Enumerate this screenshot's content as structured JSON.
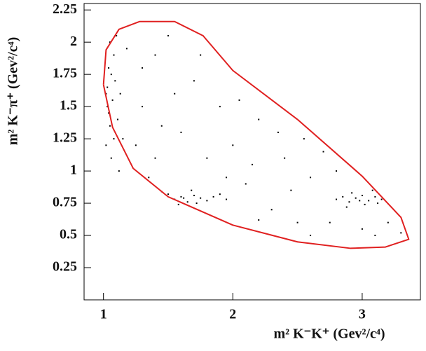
{
  "chart_data": {
    "type": "scatter",
    "xlabel": "m² K⁻K⁺ (Gev²/c⁴)",
    "ylabel": "m² K⁻π⁺ (Gev²/c⁴)",
    "xlim": [
      0.85,
      3.45
    ],
    "ylim": [
      0,
      2.3
    ],
    "xticks": [
      1,
      2,
      3
    ],
    "yticks": [
      0.25,
      0.5,
      0.75,
      1,
      1.25,
      1.5,
      1.75,
      2,
      2.25
    ],
    "color": "#000000",
    "x": [
      1.02,
      1.03,
      1.04,
      1.05,
      1.03,
      1.06,
      1.08,
      1.05,
      1.1,
      1.07,
      1.12,
      1.04,
      1.09,
      1.15,
      1.13,
      1.06,
      1.11,
      1.02,
      1.18,
      1.08,
      1.5,
      1.55,
      1.6,
      1.65,
      1.7,
      1.75,
      1.8,
      1.58,
      1.68,
      1.85,
      1.62,
      1.72,
      1.9,
      1.45,
      1.95,
      2.8,
      2.85,
      2.9,
      2.95,
      3.0,
      3.05,
      3.1,
      3.15,
      2.92,
      3.02,
      3.08,
      2.88,
      3.12,
      2.98,
      1.3,
      1.4,
      1.5,
      1.6,
      1.7,
      1.8,
      1.9,
      2.0,
      2.1,
      2.2,
      2.3,
      2.4,
      2.5,
      2.6,
      2.7,
      2.8,
      3.0,
      3.2,
      3.3,
      2.6,
      2.2,
      1.4,
      1.3,
      1.25,
      1.55,
      1.45,
      2.05,
      2.35,
      2.15,
      1.95,
      2.45,
      2.75,
      3.1,
      1.35,
      1.75,
      2.55
    ],
    "y": [
      1.2,
      1.5,
      1.8,
      2.0,
      1.65,
      1.1,
      1.9,
      1.35,
      2.05,
      1.55,
      1.0,
      1.45,
      1.7,
      1.25,
      1.6,
      1.75,
      1.4,
      1.6,
      1.95,
      1.25,
      0.82,
      0.78,
      0.8,
      0.76,
      0.81,
      0.79,
      0.77,
      0.74,
      0.85,
      0.8,
      0.79,
      0.75,
      0.82,
      0.84,
      0.78,
      0.78,
      0.8,
      0.76,
      0.79,
      0.81,
      0.77,
      0.8,
      0.78,
      0.83,
      0.74,
      0.85,
      0.72,
      0.75,
      0.77,
      1.5,
      1.9,
      2.05,
      1.3,
      1.7,
      1.1,
      1.5,
      1.2,
      0.9,
      1.4,
      0.7,
      1.1,
      0.6,
      0.95,
      1.15,
      1.0,
      0.55,
      0.6,
      0.52,
      0.5,
      0.62,
      1.1,
      1.8,
      1.2,
      1.6,
      1.35,
      1.55,
      1.3,
      1.05,
      0.95,
      0.85,
      0.6,
      0.5,
      0.95,
      1.9,
      1.25
    ],
    "boundary": {
      "color": "#e02020",
      "x": [
        1.0,
        1.02,
        1.12,
        1.28,
        1.55,
        1.77,
        2.0,
        2.5,
        3.0,
        3.3,
        3.36,
        3.18,
        2.91,
        2.5,
        2.0,
        1.5,
        1.23,
        1.07,
        1.0
      ],
      "y": [
        1.67,
        1.94,
        2.1,
        2.16,
        2.16,
        2.05,
        1.78,
        1.4,
        0.96,
        0.64,
        0.47,
        0.41,
        0.4,
        0.45,
        0.58,
        0.8,
        1.02,
        1.34,
        1.67
      ]
    }
  }
}
